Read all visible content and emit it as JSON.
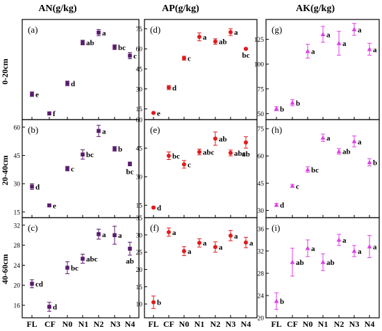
{
  "col_titles": [
    "AN(g/kg)",
    "AP(g/kg)",
    "AK(g/kg)"
  ],
  "row_titles": [
    "0-20cm",
    "20-40cm",
    "40-60cm"
  ],
  "x_categories": [
    "FL",
    "CF",
    "N0",
    "N1",
    "N2",
    "N3",
    "N4"
  ],
  "colors": {
    "AN": "#5a1a6e",
    "AP": "#e41a1c",
    "AK": "#e040e6",
    "axis": "#000000"
  },
  "chart_data": [
    {
      "type": "scatter",
      "panel": "(a)",
      "column": "AN(g/kg)",
      "row": "0-20cm",
      "marker": "square",
      "categories": [
        "FL",
        "CF",
        "N0",
        "N1",
        "N2",
        "N3",
        "N4"
      ],
      "values": [
        38.5,
        26,
        45.5,
        72,
        78.5,
        69,
        63.5
      ],
      "errors": [
        1.5,
        1,
        1.5,
        1.5,
        2,
        1.5,
        2
      ],
      "letters": [
        "e",
        "f",
        "d",
        "ab",
        "a",
        "bc",
        "c"
      ],
      "ylim": [
        22,
        87
      ],
      "yticks": []
    },
    {
      "type": "scatter",
      "panel": "(b)",
      "column": "AN(g/kg)",
      "row": "20-40cm",
      "marker": "square",
      "categories": [
        "FL",
        "CF",
        "N0",
        "N1",
        "N2",
        "N3",
        "N4"
      ],
      "values": [
        28.5,
        18.5,
        38,
        45.5,
        58,
        48.5,
        40.5
      ],
      "errors": [
        1.5,
        0.5,
        1.2,
        2.5,
        3,
        1.2,
        1
      ],
      "letters": [
        "d",
        "e",
        "c",
        "bc",
        "a",
        "b",
        "bc"
      ],
      "ylim": [
        12,
        64
      ],
      "yticks": [
        "15",
        "30",
        "45",
        "60"
      ]
    },
    {
      "type": "scatter",
      "panel": "(c)",
      "column": "AN(g/kg)",
      "row": "40-60cm",
      "marker": "square",
      "categories": [
        "FL",
        "CF",
        "N0",
        "N1",
        "N2",
        "N3",
        "N4"
      ],
      "values": [
        20.3,
        15.7,
        23.5,
        25.3,
        30.2,
        30,
        27.3
      ],
      "errors": [
        0.8,
        0.9,
        1.2,
        0.9,
        1,
        1.8,
        1.3
      ],
      "letters": [
        "cd",
        "d",
        "bc",
        "abc",
        "a",
        "a",
        "ab"
      ],
      "ylim": [
        13.5,
        33.5
      ],
      "yticks": [
        "16",
        "20",
        "24",
        "28",
        "32"
      ]
    },
    {
      "type": "scatter",
      "panel": "(d)",
      "column": "AP(g/kg)",
      "row": "0-20cm",
      "marker": "circle",
      "categories": [
        "FL",
        "CF",
        "N0",
        "N1",
        "N2",
        "N3",
        "N4"
      ],
      "values": [
        12,
        31,
        53,
        69,
        65.5,
        72.5,
        60
      ],
      "errors": [
        0.5,
        1.5,
        1.5,
        3,
        2,
        2.5,
        0.5
      ],
      "letters": [
        "e",
        "d",
        "c",
        "a",
        "ab",
        "a",
        "bc"
      ],
      "ylim": [
        7,
        82
      ],
      "yticks": [
        "15",
        "30",
        "45",
        "60",
        "75"
      ]
    },
    {
      "type": "scatter",
      "panel": "(e)",
      "column": "AP(g/kg)",
      "row": "20-40cm",
      "marker": "circle",
      "categories": [
        "FL",
        "CF",
        "N0",
        "N1",
        "N2",
        "N3",
        "N4"
      ],
      "values": [
        13.8,
        41,
        36.5,
        43,
        50,
        42.5,
        48
      ],
      "errors": [
        0.5,
        2,
        2,
        1.5,
        3.5,
        1.5,
        3
      ],
      "letters": [
        "d",
        "bc",
        "c",
        "abc",
        "ab",
        "abc",
        "ab"
      ],
      "ylim": [
        8.5,
        60
      ],
      "yticks": [
        "15",
        "30",
        "45",
        "60"
      ]
    },
    {
      "type": "scatter",
      "panel": "(f)",
      "column": "AP(g/kg)",
      "row": "40-60cm",
      "marker": "circle",
      "categories": [
        "FL",
        "CF",
        "N0",
        "N1",
        "N2",
        "N3",
        "N4"
      ],
      "values": [
        10.5,
        30.8,
        25.3,
        27.7,
        26.5,
        29.8,
        27.8
      ],
      "errors": [
        1.8,
        1.2,
        1.3,
        1.2,
        1.5,
        1.5,
        1.5
      ],
      "letters": [
        "b",
        "a",
        "a",
        "a",
        "a",
        "a",
        "a"
      ],
      "ylim": [
        6,
        35
      ],
      "yticks": [
        "10",
        "15",
        "20",
        "25",
        "30",
        "35"
      ]
    },
    {
      "type": "scatter",
      "panel": "(g)",
      "column": "AK(g/kg)",
      "row": "0-20cm",
      "marker": "triangle",
      "categories": [
        "FL",
        "CF",
        "N0",
        "N1",
        "N2",
        "N3",
        "N4"
      ],
      "values": [
        55,
        61,
        113,
        130,
        121,
        135,
        115
      ],
      "errors": [
        2,
        3,
        7,
        8,
        12,
        6,
        6
      ],
      "letters": [
        "b",
        "b",
        "a",
        "a",
        "a",
        "a",
        "a"
      ],
      "ylim": [
        44,
        145
      ],
      "yticks": [
        "50",
        "75",
        "100",
        "125"
      ]
    },
    {
      "type": "scatter",
      "panel": "(h)",
      "column": "AK(g/kg)",
      "row": "20-40cm",
      "marker": "triangle",
      "categories": [
        "FL",
        "CF",
        "N0",
        "N1",
        "N2",
        "N3",
        "N4"
      ],
      "values": [
        33,
        43.5,
        52.5,
        70,
        62.5,
        68,
        56.5
      ],
      "errors": [
        0.8,
        0.8,
        1.5,
        2,
        1.5,
        3,
        2
      ],
      "letters": [
        "d",
        "c",
        "bc",
        "a",
        "ab",
        "a",
        "b"
      ],
      "ylim": [
        26,
        80
      ],
      "yticks": [
        "30",
        "45",
        "60",
        "75"
      ]
    },
    {
      "type": "scatter",
      "panel": "(i)",
      "column": "AK(g/kg)",
      "row": "40-60cm",
      "marker": "triangle",
      "categories": [
        "FL",
        "CF",
        "N0",
        "N1",
        "N2",
        "N3",
        "N4"
      ],
      "values": [
        23,
        30,
        32.5,
        30,
        34,
        32,
        32.8
      ],
      "errors": [
        1.5,
        2.5,
        1.5,
        1.5,
        1,
        1,
        2
      ],
      "letters": [
        "b",
        "ab",
        "a",
        "ab",
        "a",
        "a",
        "a"
      ],
      "ylim": [
        20,
        38
      ],
      "yticks": [
        "20",
        "24",
        "28",
        "32",
        "36"
      ]
    }
  ]
}
